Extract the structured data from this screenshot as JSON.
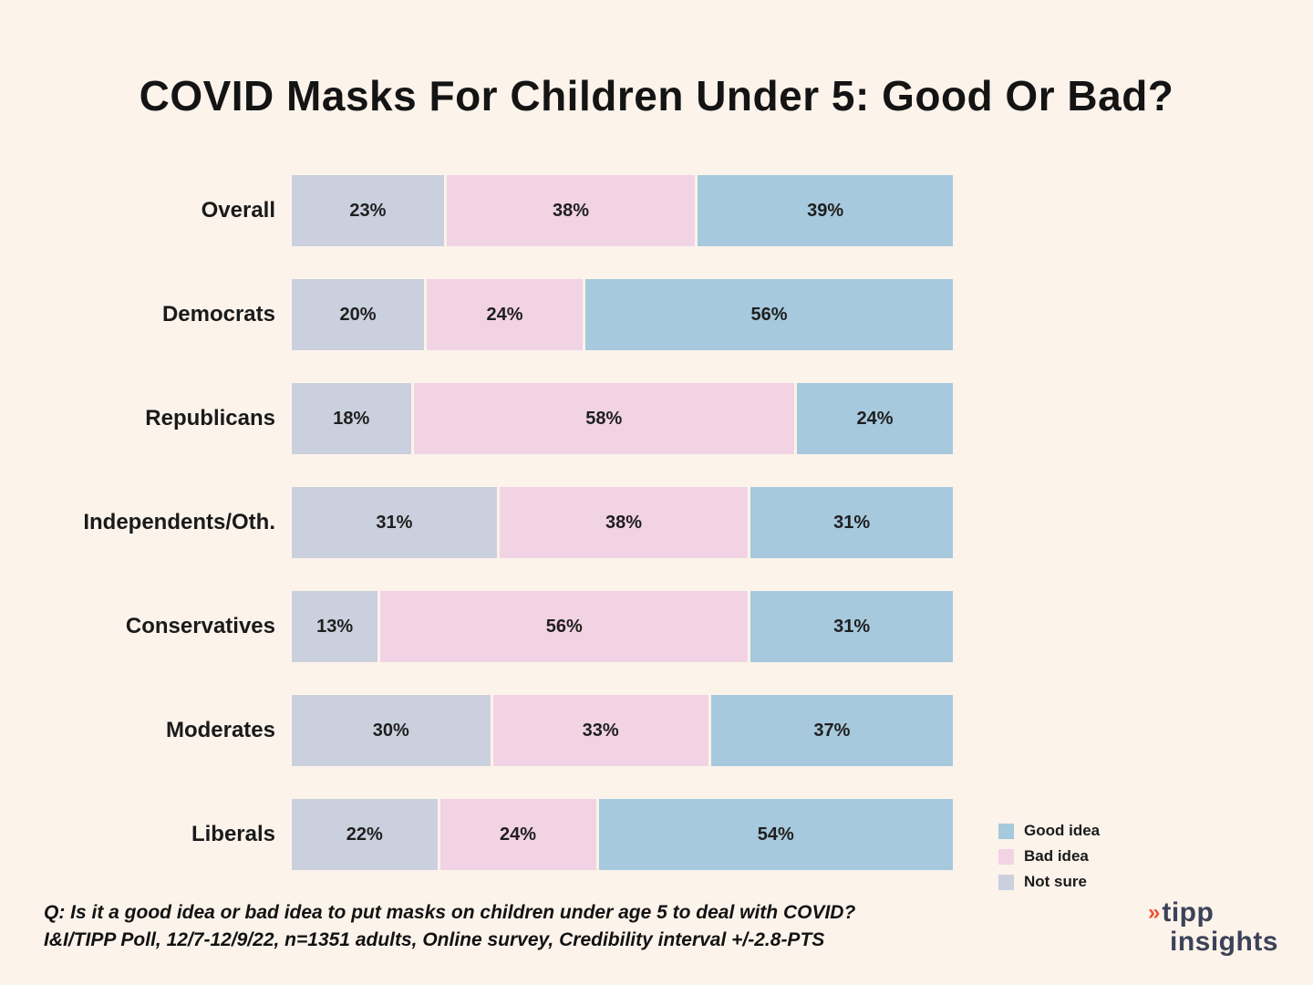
{
  "chart_data": {
    "type": "bar",
    "orientation": "horizontal-stacked",
    "title": "COVID Masks For Children Under 5: Good Or Bad?",
    "categories": [
      "Overall",
      "Democrats",
      "Republicans",
      "Independents/Oth.",
      "Conservatives",
      "Moderates",
      "Liberals"
    ],
    "series": [
      {
        "name": "Not sure",
        "color": "#CBD0DE",
        "values": [
          23,
          20,
          18,
          31,
          13,
          30,
          22
        ]
      },
      {
        "name": "Bad idea",
        "color": "#F2D3E3",
        "values": [
          38,
          24,
          58,
          38,
          56,
          33,
          24
        ]
      },
      {
        "name": "Good idea",
        "color": "#A6C9DD",
        "values": [
          39,
          56,
          24,
          31,
          31,
          37,
          54
        ]
      }
    ],
    "value_suffix": "%",
    "xlim": [
      0,
      100
    ],
    "grid": false,
    "legend_position": "bottom-right"
  },
  "legend": {
    "items": [
      {
        "label": "Good idea",
        "color": "#A6C9DD"
      },
      {
        "label": "Bad idea",
        "color": "#F2D3E3"
      },
      {
        "label": "Not sure",
        "color": "#CBD0DE"
      }
    ]
  },
  "footer": {
    "line1": "Q: Is it a good idea or bad idea to put masks on children under age 5 to deal with COVID?",
    "line2": "I&I/TIPP Poll, 12/7-12/9/22, n=1351 adults, Online survey, Credibility interval +/-2.8-PTS"
  },
  "logo": {
    "icon": "»",
    "word1": "tipp",
    "word2": "insights"
  },
  "colors": {
    "background": "#FCF3EB",
    "text": "#141414",
    "logo_navy": "#3C4258",
    "logo_orange": "#F0502E"
  }
}
